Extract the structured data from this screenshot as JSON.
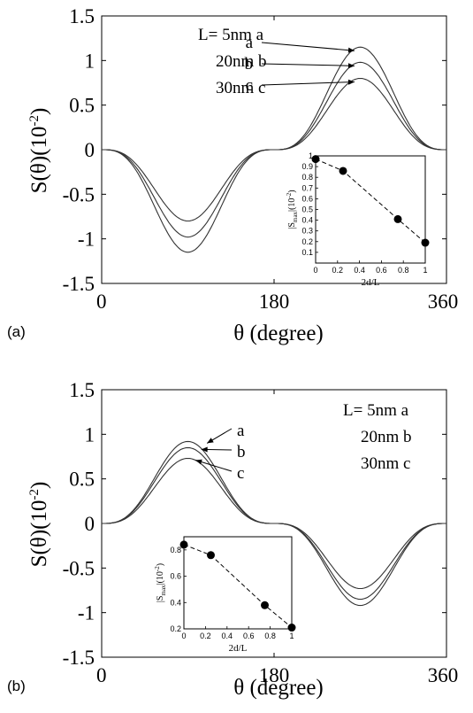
{
  "chart_data": [
    {
      "panel_label": "(a)",
      "type": "line",
      "xlabel": "θ (degree)",
      "ylabel": "S(θ)(10",
      "ylabel_exp": "-2",
      "ylabel_close": ")",
      "xlim": [
        0,
        360
      ],
      "ylim": [
        -1.5,
        1.5
      ],
      "x_ticks": [
        0,
        180,
        360
      ],
      "y_ticks": [
        -1.5,
        -1,
        -0.5,
        0,
        0.5,
        1,
        1.5
      ],
      "x_tick_labels": [
        "0",
        "180",
        "360"
      ],
      "y_tick_labels": [
        "-1.5",
        "-1",
        "-0.5",
        "0",
        "0.5",
        "1",
        "1.5"
      ],
      "legend_lines": [
        "L= 5nm a",
        "20nm b",
        "30nm c"
      ],
      "series": [
        {
          "name": "a",
          "amplitude": 1.15,
          "sign": -1,
          "peak_x": 264
        },
        {
          "name": "b",
          "amplitude": 0.98,
          "sign": -1,
          "peak_x": 264
        },
        {
          "name": "c",
          "amplitude": 0.8,
          "sign": -1,
          "peak_x": 264
        }
      ],
      "annotations": [
        {
          "text": "a",
          "x": 264,
          "y": 1.15
        },
        {
          "text": "b",
          "x": 264,
          "y": 0.98
        },
        {
          "text": "c",
          "x": 264,
          "y": 0.8
        }
      ],
      "inset": {
        "type": "scatter",
        "xlabel": "2d/L",
        "ylabel": "|S",
        "ylabel_sub": "max",
        "ylabel_tail": "|(10",
        "ylabel_exp": "-2",
        "ylabel_close": ")",
        "xlim": [
          0,
          1
        ],
        "ylim": [
          0,
          1
        ],
        "x_ticks": [
          0,
          0.2,
          0.4,
          0.6,
          0.8,
          1
        ],
        "x_tick_labels": [
          "0",
          "0.2",
          "0.4",
          "0.6",
          "0.8",
          "1"
        ],
        "y_ticks": [
          0.1,
          0.2,
          0.3,
          0.4,
          0.5,
          0.6,
          0.7,
          0.8,
          0.9,
          1
        ],
        "y_tick_labels": [
          "0.1",
          "0.2",
          "0.3",
          "0.4",
          "0.5",
          "0.6",
          "0.7",
          "0.8",
          "0.9",
          "1"
        ],
        "points": [
          {
            "x": 0.0,
            "y": 0.97
          },
          {
            "x": 0.25,
            "y": 0.86
          },
          {
            "x": 0.75,
            "y": 0.41
          },
          {
            "x": 1.0,
            "y": 0.19
          }
        ]
      }
    },
    {
      "panel_label": "(b)",
      "type": "line",
      "xlabel": "θ (degree)",
      "ylabel": "S(θ)(10",
      "ylabel_exp": "-2",
      "ylabel_close": ")",
      "xlim": [
        0,
        360
      ],
      "ylim": [
        -1.5,
        1.5
      ],
      "x_ticks": [
        0,
        180,
        360
      ],
      "y_ticks": [
        -1.5,
        -1,
        -0.5,
        0,
        0.5,
        1,
        1.5
      ],
      "x_tick_labels": [
        "0",
        "180",
        "360"
      ],
      "y_tick_labels": [
        "-1.5",
        "-1",
        "-0.5",
        "0",
        "0.5",
        "1",
        "1.5"
      ],
      "legend_lines": [
        "L= 5nm a",
        "20nm b",
        "30nm c"
      ],
      "series": [
        {
          "name": "a",
          "amplitude": 0.92,
          "sign": 1,
          "peak_x": 100
        },
        {
          "name": "b",
          "amplitude": 0.85,
          "sign": 1,
          "peak_x": 100
        },
        {
          "name": "c",
          "amplitude": 0.73,
          "sign": 1,
          "peak_x": 100
        }
      ],
      "annotations": [
        {
          "text": "a",
          "x": 100,
          "y": 0.92
        },
        {
          "text": "b",
          "x": 100,
          "y": 0.85
        },
        {
          "text": "c",
          "x": 100,
          "y": 0.73
        }
      ],
      "inset": {
        "type": "scatter",
        "xlabel": "2d/L",
        "ylabel": "|S",
        "ylabel_sub": "max",
        "ylabel_tail": "|(10",
        "ylabel_exp": "-2",
        "ylabel_close": ")",
        "xlim": [
          0,
          1
        ],
        "ylim": [
          0.2,
          0.9
        ],
        "x_ticks": [
          0,
          0.2,
          0.4,
          0.6,
          0.8,
          1
        ],
        "x_tick_labels": [
          "0",
          "0.2",
          "0.4",
          "0.6",
          "0.8",
          "1"
        ],
        "y_ticks": [
          0.2,
          0.4,
          0.6,
          0.8
        ],
        "y_tick_labels": [
          "0.2",
          "0.4",
          "0.6",
          "0.8"
        ],
        "points": [
          {
            "x": 0.0,
            "y": 0.84
          },
          {
            "x": 0.25,
            "y": 0.76
          },
          {
            "x": 0.75,
            "y": 0.38
          },
          {
            "x": 1.0,
            "y": 0.21
          }
        ]
      }
    }
  ]
}
